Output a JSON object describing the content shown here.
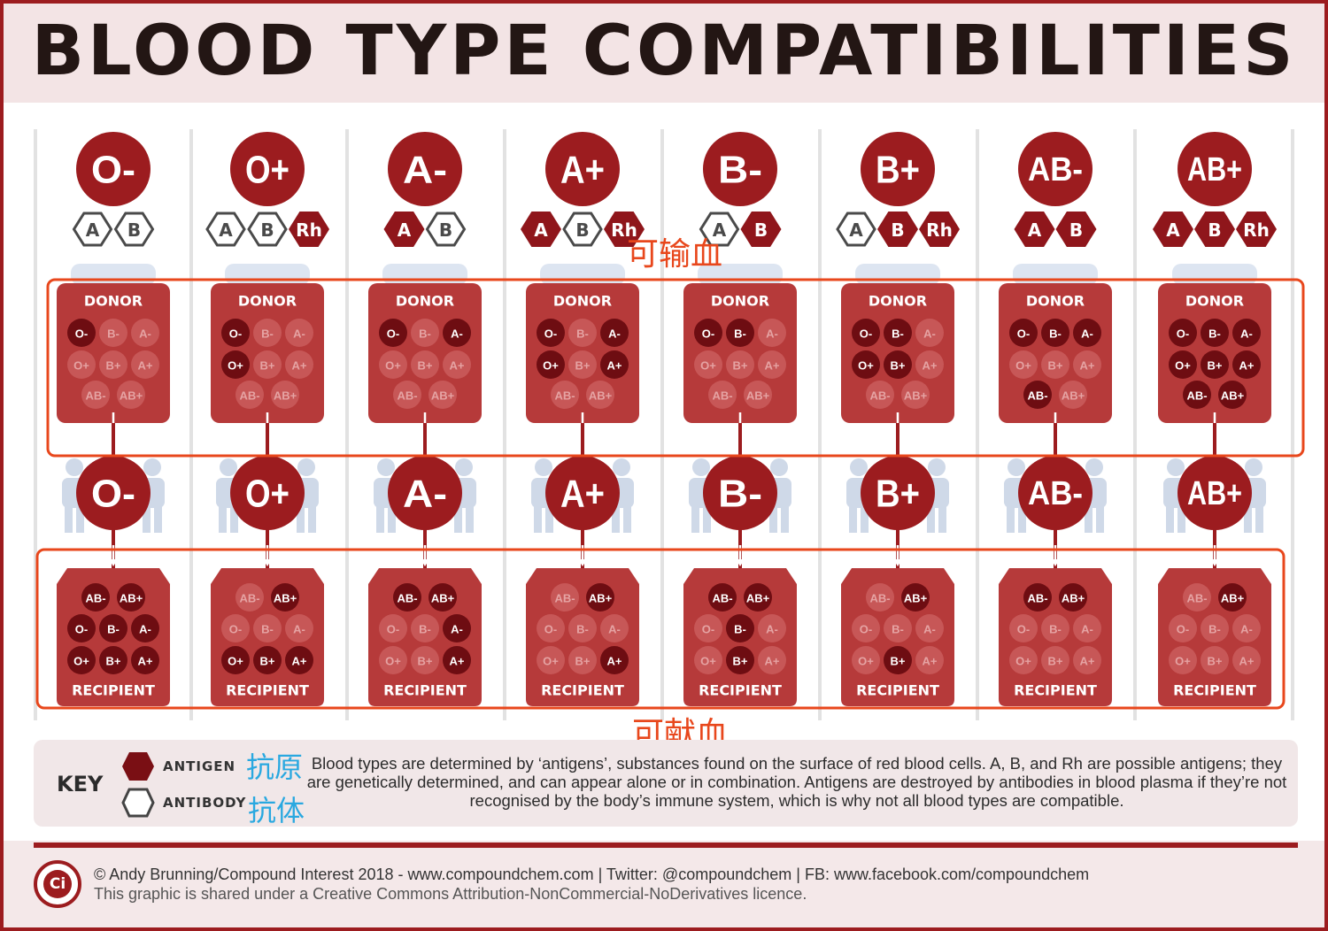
{
  "title": "BLOOD TYPE COMPATIBILITIES",
  "blood_types": [
    {
      "label": "O-",
      "antigens": {
        "A": false,
        "B": false,
        "Rh": null
      },
      "donor_to": [
        "O-"
      ],
      "recipient_from": [
        "AB-",
        "AB+",
        "O-",
        "B-",
        "A-",
        "O+",
        "B+",
        "A+"
      ]
    },
    {
      "label": "O+",
      "antigens": {
        "A": false,
        "B": false,
        "Rh": true
      },
      "donor_to": [
        "O-",
        "O+"
      ],
      "recipient_from": [
        "AB+",
        "O+",
        "B+",
        "A+"
      ]
    },
    {
      "label": "A-",
      "antigens": {
        "A": true,
        "B": false,
        "Rh": null
      },
      "donor_to": [
        "O-",
        "A-"
      ],
      "recipient_from": [
        "AB-",
        "AB+",
        "A-",
        "A+"
      ]
    },
    {
      "label": "A+",
      "antigens": {
        "A": true,
        "B": false,
        "Rh": true
      },
      "donor_to": [
        "O-",
        "A-",
        "O+",
        "A+"
      ],
      "recipient_from": [
        "AB+",
        "A+"
      ]
    },
    {
      "label": "B-",
      "antigens": {
        "A": false,
        "B": true,
        "Rh": null
      },
      "donor_to": [
        "O-",
        "B-"
      ],
      "recipient_from": [
        "AB-",
        "AB+",
        "B-",
        "B+"
      ]
    },
    {
      "label": "B+",
      "antigens": {
        "A": false,
        "B": true,
        "Rh": true
      },
      "donor_to": [
        "O-",
        "B-",
        "O+",
        "B+"
      ],
      "recipient_from": [
        "AB+",
        "B+"
      ]
    },
    {
      "label": "AB-",
      "antigens": {
        "A": true,
        "B": true,
        "Rh": null
      },
      "donor_to": [
        "O-",
        "B-",
        "A-",
        "AB-"
      ],
      "recipient_from": [
        "AB-",
        "AB+"
      ]
    },
    {
      "label": "AB+",
      "antigens": {
        "A": true,
        "B": true,
        "Rh": true
      },
      "donor_to": [
        "O-",
        "B-",
        "A-",
        "O+",
        "B+",
        "A+",
        "AB-",
        "AB+"
      ],
      "recipient_from": [
        "AB+"
      ]
    }
  ],
  "donor_grid": [
    [
      "O-",
      "B-",
      "A-"
    ],
    [
      "O+",
      "B+",
      "A+"
    ],
    [
      "AB-",
      "AB+"
    ]
  ],
  "recipient_grid": [
    [
      "AB-",
      "AB+"
    ],
    [
      "O-",
      "B-",
      "A-"
    ],
    [
      "O+",
      "B+",
      "A+"
    ]
  ],
  "antigen_letters": [
    "A",
    "B",
    "Rh"
  ],
  "donor_label": "DONOR",
  "recipient_label": "RECIPIENT",
  "annotation_transfuse": "可输血",
  "annotation_donate": "可献血",
  "key": {
    "title": "KEY",
    "antigen_label": "ANTIGEN",
    "antibody_label": "ANTIBODY",
    "antigen_cn": "抗原",
    "antibody_cn": "抗体",
    "description": "Blood types are determined by ‘antigens’, substances found on the surface of red blood cells. A, B, and Rh are possible antigens; they are genetically determined, and can appear alone or in combination. Antigens are destroyed by antibodies in blood plasma if they’re not recognised by the body’s immune system, which is why not all blood types are compatible."
  },
  "footer": {
    "logo_text": "Ci",
    "credit": "© Andy Brunning/Compound Interest 2018 - www.compoundchem.com | Twitter: @compoundchem | FB: www.facebook.com/compoundchem",
    "license": "This graphic is shared under a Creative Commons Attribution-NonCommercial-NoDerivatives licence."
  },
  "colors": {
    "dark_red": "#9c1c1f",
    "bag_red": "#b63a3a",
    "dot_dark": "#6e0d12",
    "dot_faint": "#c75757",
    "annotation_orange": "#e8471c",
    "annotation_blue": "#29a8e0",
    "people": "#cfd9e8"
  }
}
